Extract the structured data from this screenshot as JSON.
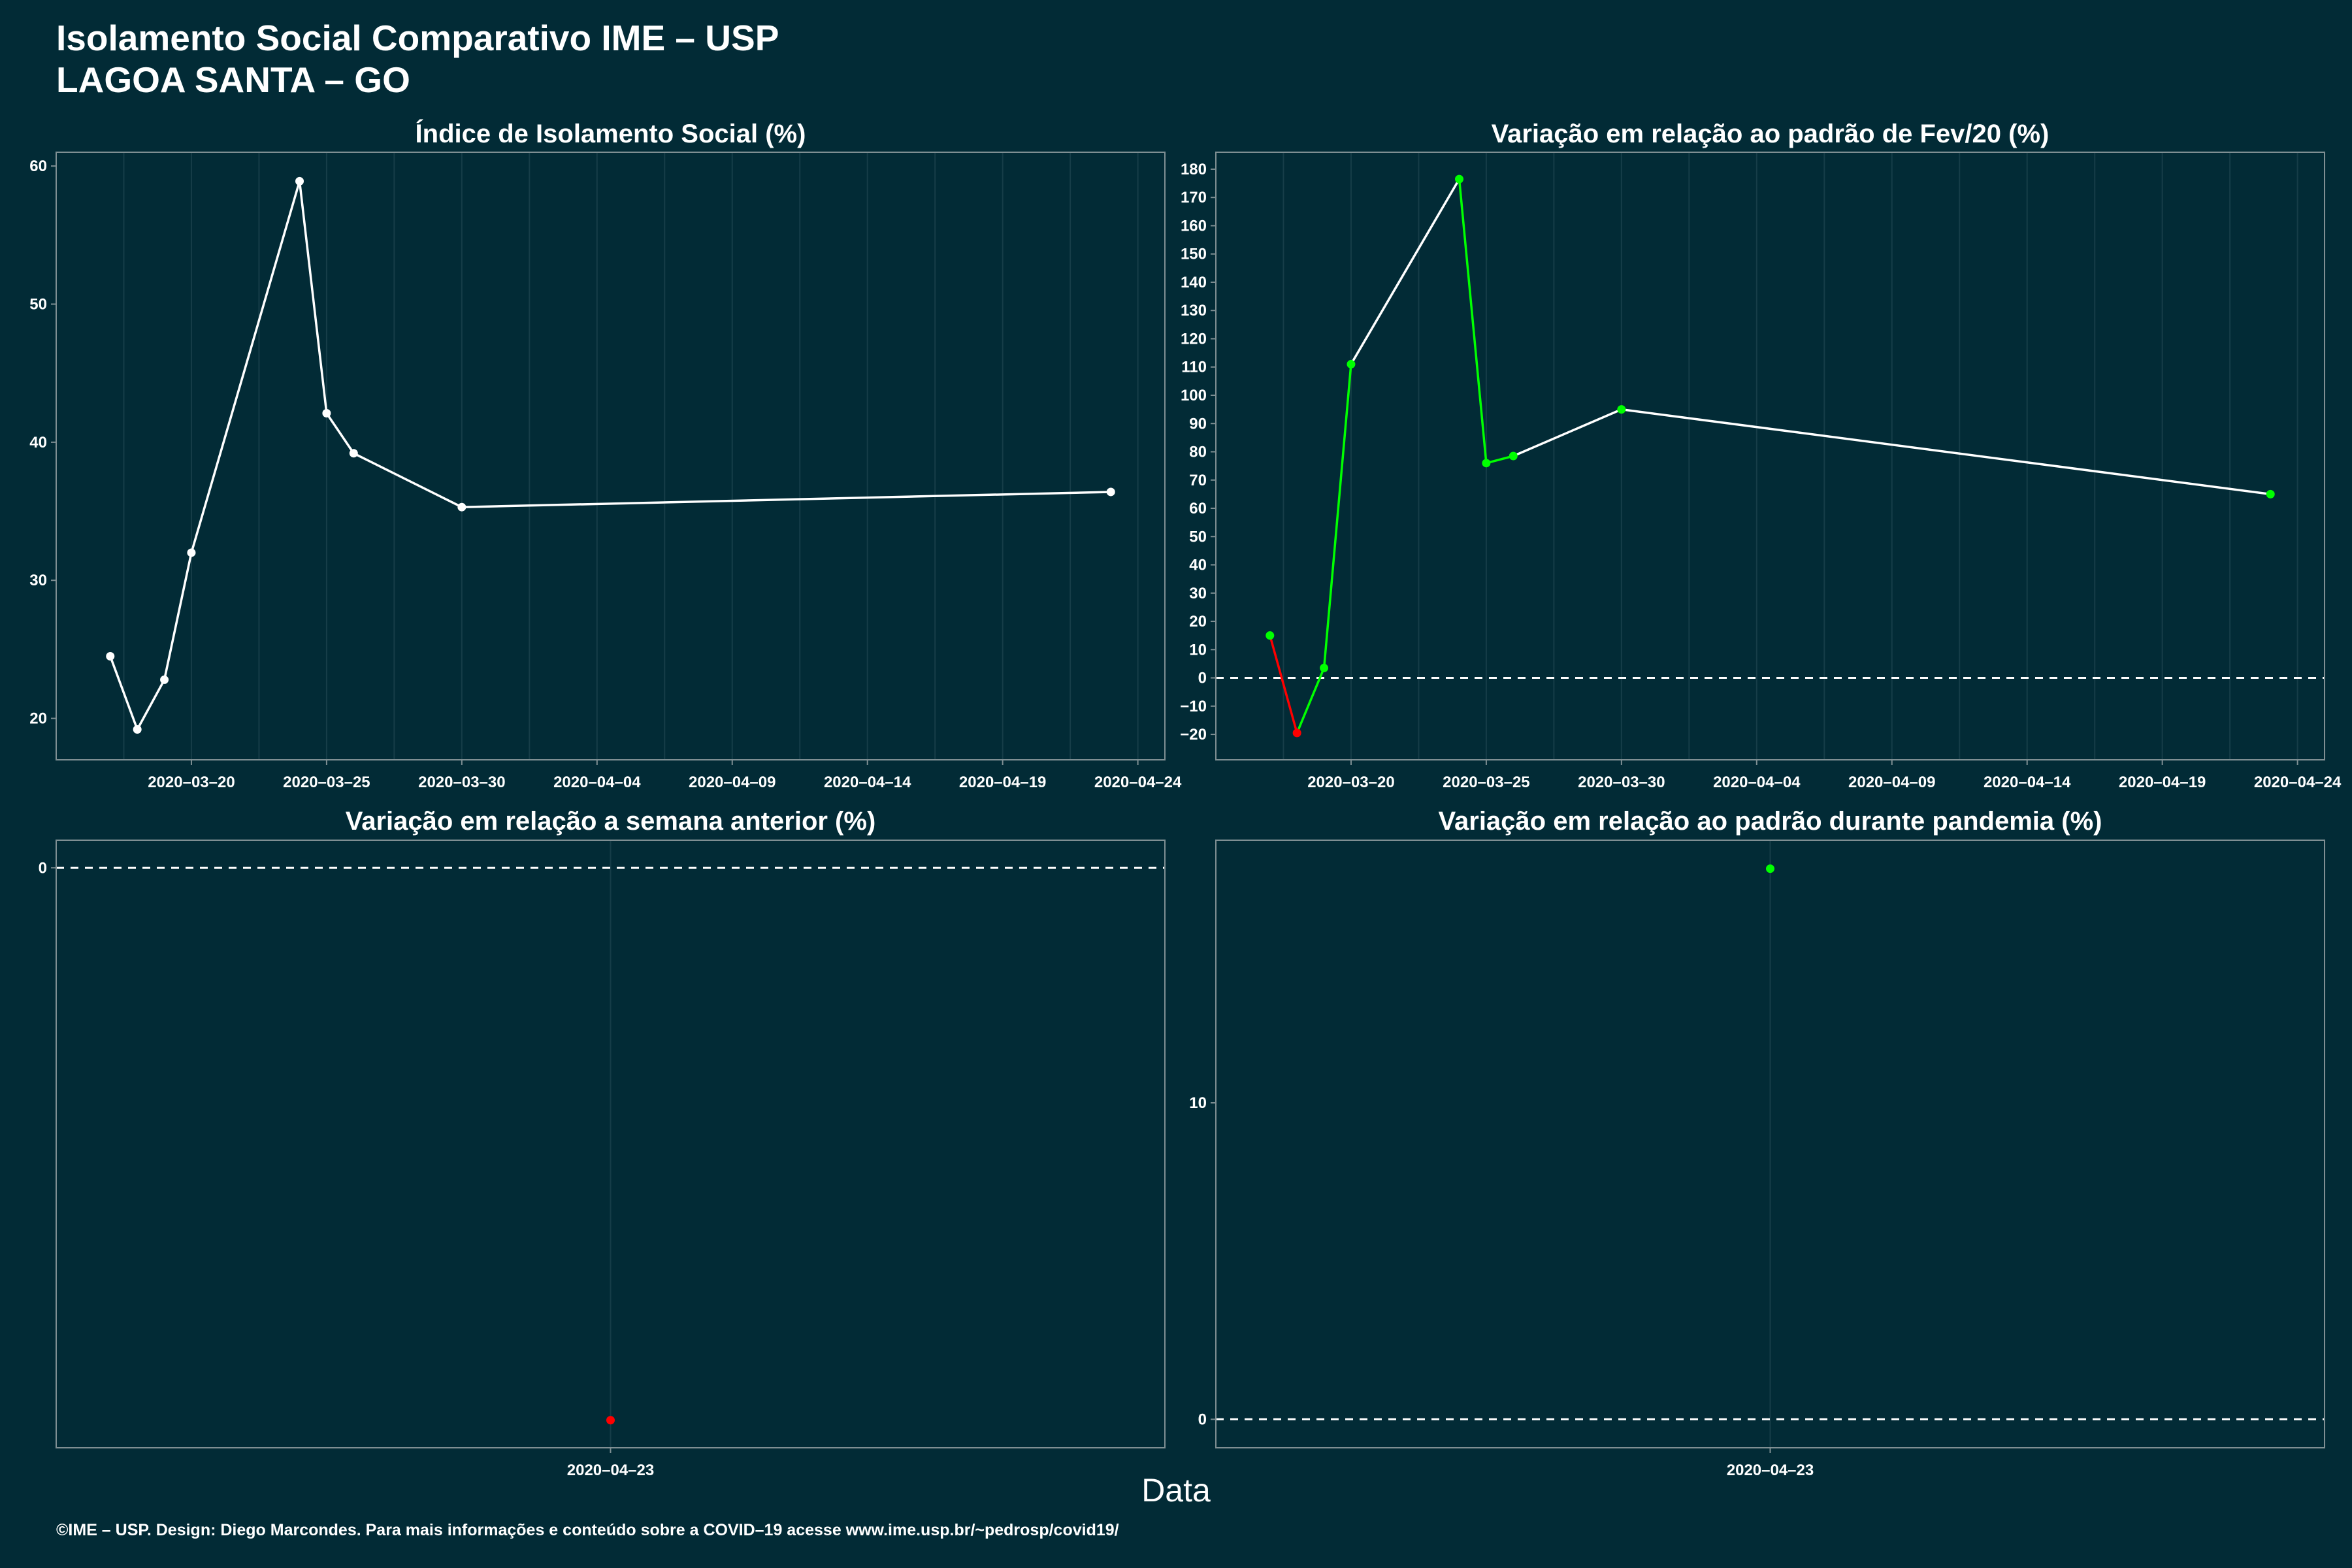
{
  "header": {
    "title_line1": "Isolamento Social Comparativo IME – USP",
    "title_line2": "LAGOA SANTA – GO"
  },
  "footer": {
    "xlabel": "Data",
    "caption": "©IME – USP. Design: Diego Marcondes. Para mais informações e conteúdo sobre a COVID–19 acesse www.ime.usp.br/~pedrosp/covid19/"
  },
  "colors": {
    "background": "#022b36",
    "panel_border": "#7f8f93",
    "grid": "#163d48",
    "line": "#ffffff",
    "positive": "#00ff00",
    "negative": "#ff0000"
  },
  "chart_data": [
    {
      "type": "line",
      "title": "Índice de Isolamento Social (%)",
      "xlabel": "Data",
      "ylabel": "",
      "x_is_date": true,
      "xlim": [
        "2020-03-15",
        "2020-04-25"
      ],
      "ylim": [
        17,
        61
      ],
      "yticks": [
        20,
        30,
        40,
        50,
        60
      ],
      "xticks": [
        "2020-03-20",
        "2020-03-25",
        "2020-03-30",
        "2020-04-04",
        "2020-04-09",
        "2020-04-14",
        "2020-04-19",
        "2020-04-24"
      ],
      "series": [
        {
          "x": [
            "2020-03-17",
            "2020-03-18",
            "2020-03-19",
            "2020-03-20",
            "2020-03-24",
            "2020-03-25",
            "2020-03-26",
            "2020-03-30",
            "2020-04-23"
          ],
          "values": [
            24.5,
            19.2,
            22.8,
            32.0,
            58.9,
            42.1,
            39.2,
            35.3,
            36.4
          ]
        }
      ],
      "dashed_zero": false,
      "grid": true
    },
    {
      "type": "line",
      "title": "Variação em relação ao padrão de Fev/20 (%)",
      "xlabel": "Data",
      "ylabel": "",
      "x_is_date": true,
      "xlim": [
        "2020-03-15",
        "2020-04-25"
      ],
      "ylim": [
        -29,
        186
      ],
      "yticks": [
        -20,
        -10,
        0,
        10,
        20,
        30,
        40,
        50,
        60,
        70,
        80,
        90,
        100,
        110,
        120,
        130,
        140,
        150,
        160,
        170,
        180
      ],
      "xticks": [
        "2020-03-20",
        "2020-03-25",
        "2020-03-30",
        "2020-04-04",
        "2020-04-09",
        "2020-04-14",
        "2020-04-19",
        "2020-04-24"
      ],
      "series": [
        {
          "x": [
            "2020-03-17",
            "2020-03-18",
            "2020-03-19",
            "2020-03-20",
            "2020-03-24",
            "2020-03-25",
            "2020-03-26",
            "2020-03-30",
            "2020-04-23"
          ],
          "values": [
            15,
            -19.5,
            3.5,
            111,
            176.5,
            76,
            78.5,
            95,
            65
          ],
          "point_colors": [
            "#00ff00",
            "#ff0000",
            "#00ff00",
            "#00ff00",
            "#00ff00",
            "#00ff00",
            "#00ff00",
            "#00ff00",
            "#00ff00"
          ],
          "segment_colors": [
            "#ff0000",
            "#00ff00",
            "#00ff00",
            "#ffffff",
            "#00ff00",
            "#00ff00",
            "#ffffff",
            "#ffffff"
          ]
        }
      ],
      "dashed_zero": true,
      "grid": true
    },
    {
      "type": "scatter",
      "title": "Variação em relação a semana anterior (%)",
      "xlabel": "Data",
      "ylabel": "",
      "x_is_date": true,
      "xlim": [
        "2020-04-22",
        "2020-04-24"
      ],
      "ylim": [
        -25.2,
        1.2
      ],
      "yticks": [
        0
      ],
      "xticks": [
        "2020-04-23"
      ],
      "series": [
        {
          "x": [
            "2020-04-23"
          ],
          "values": [
            -24
          ],
          "point_colors": [
            "#ff0000"
          ]
        }
      ],
      "dashed_zero": true,
      "grid": true
    },
    {
      "type": "scatter",
      "title": "Variação em relação ao padrão durante pandemia (%)",
      "xlabel": "Data",
      "ylabel": "",
      "x_is_date": true,
      "xlim": [
        "2020-04-22",
        "2020-04-24"
      ],
      "ylim": [
        -0.9,
        18.3
      ],
      "yticks": [
        0,
        10
      ],
      "xticks": [
        "2020-04-23"
      ],
      "series": [
        {
          "x": [
            "2020-04-23"
          ],
          "values": [
            17.4
          ],
          "point_colors": [
            "#00ff00"
          ]
        }
      ],
      "dashed_zero": true,
      "grid": true
    }
  ]
}
